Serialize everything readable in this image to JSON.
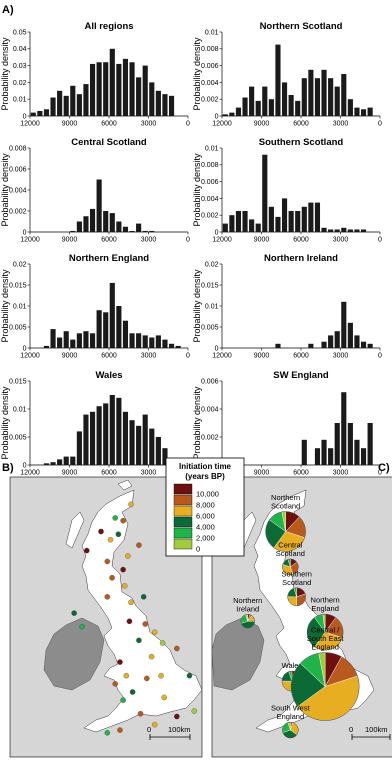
{
  "panels": {
    "a": "A)",
    "b": "B)",
    "c": "C)"
  },
  "chart_data": [
    {
      "type": "bar",
      "title": "All regions",
      "ylabel": "Probability density",
      "xlabel": "",
      "ylim": [
        0,
        0.05
      ],
      "yticks": [
        "0",
        "0.01",
        "0.02",
        "0.03",
        "0.04",
        "0.05"
      ],
      "xticks": [
        "12000",
        "9000",
        "6000",
        "3000",
        "0"
      ],
      "x": [
        11750,
        11250,
        10750,
        10250,
        9750,
        9250,
        8750,
        8250,
        7750,
        7250,
        6750,
        6250,
        5750,
        5250,
        4750,
        4250,
        3750,
        3250,
        2750,
        2250,
        1750,
        1250,
        750,
        250
      ],
      "values": [
        0.002,
        0.003,
        0.004,
        0.011,
        0.015,
        0.012,
        0.018,
        0.013,
        0.019,
        0.031,
        0.032,
        0.032,
        0.04,
        0.031,
        0.034,
        0.032,
        0.023,
        0.03,
        0.02,
        0.015,
        0.013,
        0.012,
        0.0,
        0.0
      ]
    },
    {
      "type": "bar",
      "title": "Northern Scotland",
      "ylabel": "Probability density",
      "xlabel": "",
      "ylim": [
        0,
        0.01
      ],
      "yticks": [
        "0",
        "0.002",
        "0.004",
        "0.006",
        "0.008",
        "0.01"
      ],
      "xticks": [
        "12000",
        "9000",
        "6000",
        "3000",
        "0"
      ],
      "x": [
        11750,
        11250,
        10750,
        10250,
        9750,
        9250,
        8750,
        8250,
        7750,
        7250,
        6750,
        6250,
        5750,
        5250,
        4750,
        4250,
        3750,
        3250,
        2750,
        2250,
        1750,
        1250,
        750,
        250
      ],
      "values": [
        0.0002,
        0.0004,
        0.001,
        0.0022,
        0.0035,
        0.0018,
        0.0035,
        0.002,
        0.0085,
        0.004,
        0.0025,
        0.0018,
        0.0045,
        0.0055,
        0.0045,
        0.0055,
        0.0045,
        0.0035,
        0.005,
        0.002,
        0.001,
        0.0008,
        0.001,
        0.0
      ]
    },
    {
      "type": "bar",
      "title": "Central Scotland",
      "ylabel": "Probability density",
      "xlabel": "",
      "ylim": [
        0,
        0.008
      ],
      "yticks": [
        "0",
        "0.002",
        "0.004",
        "0.006",
        "0.008"
      ],
      "xticks": [
        "12000",
        "9000",
        "6000",
        "3000",
        "0"
      ],
      "x": [
        11750,
        11250,
        10750,
        10250,
        9750,
        9250,
        8750,
        8250,
        7750,
        7250,
        6750,
        6250,
        5750,
        5250,
        4750,
        4250,
        3750,
        3250,
        2750,
        2250,
        1750,
        1250,
        750,
        250
      ],
      "values": [
        0.0,
        0.0,
        0.0,
        0.0,
        0.0,
        0.0,
        0.0001,
        0.001,
        0.0015,
        0.0022,
        0.005,
        0.002,
        0.0018,
        0.001,
        0.0005,
        0.0001,
        0.0008,
        0.0001,
        0.0001,
        0.0,
        0.0,
        0.0,
        0.0,
        0.0
      ]
    },
    {
      "type": "bar",
      "title": "Southern Scotland",
      "ylabel": "Probability density",
      "xlabel": "",
      "ylim": [
        0,
        0.01
      ],
      "yticks": [
        "0",
        "0.002",
        "0.004",
        "0.006",
        "0.008",
        "0.01"
      ],
      "xticks": [
        "12000",
        "9000",
        "6000",
        "3000",
        "0"
      ],
      "x": [
        11750,
        11250,
        10750,
        10250,
        9750,
        9250,
        8750,
        8250,
        7750,
        7250,
        6750,
        6250,
        5750,
        5250,
        4750,
        4250,
        3750,
        3250,
        2750,
        2250,
        1750,
        1250,
        750,
        250
      ],
      "values": [
        0.001,
        0.002,
        0.0025,
        0.0025,
        0.0015,
        0.001,
        0.0092,
        0.003,
        0.0018,
        0.004,
        0.0025,
        0.0025,
        0.003,
        0.0035,
        0.0035,
        0.0005,
        0.0003,
        0.0003,
        0.0005,
        0.0003,
        0.0003,
        0.0003,
        0.0,
        0.0
      ]
    },
    {
      "type": "bar",
      "title": "Northern England",
      "ylabel": "Probability density",
      "xlabel": "",
      "ylim": [
        0,
        0.02
      ],
      "yticks": [
        "0",
        "0.005",
        "0.01",
        "0.015",
        "0.02"
      ],
      "xticks": [
        "12000",
        "9000",
        "6000",
        "3000",
        "0"
      ],
      "x": [
        11750,
        11250,
        10750,
        10250,
        9750,
        9250,
        8750,
        8250,
        7750,
        7250,
        6750,
        6250,
        5750,
        5250,
        4750,
        4250,
        3750,
        3250,
        2750,
        2250,
        1750,
        1250,
        750,
        250
      ],
      "values": [
        0.0,
        0.0,
        0.0005,
        0.0045,
        0.0025,
        0.004,
        0.002,
        0.0035,
        0.004,
        0.0035,
        0.009,
        0.0085,
        0.0155,
        0.01,
        0.0065,
        0.0035,
        0.0035,
        0.003,
        0.0025,
        0.003,
        0.002,
        0.001,
        0.0005,
        0.0
      ]
    },
    {
      "type": "bar",
      "title": "Northern Ireland",
      "ylabel": "Probability density",
      "xlabel": "",
      "ylim": [
        0,
        0.02
      ],
      "yticks": [
        "0",
        "0.005",
        "0.01",
        "0.015",
        "0.02"
      ],
      "xticks": [
        "12000",
        "9000",
        "6000",
        "3000",
        "0"
      ],
      "x": [
        11750,
        11250,
        10750,
        10250,
        9750,
        9250,
        8750,
        8250,
        7750,
        7250,
        6750,
        6250,
        5750,
        5250,
        4750,
        4250,
        3750,
        3250,
        2750,
        2250,
        1750,
        1250,
        750,
        250
      ],
      "values": [
        0.0,
        0.0,
        0.0,
        0.0,
        0.0,
        0.0,
        0.0,
        0.0,
        0.001,
        0.0,
        0.0,
        0.0,
        0.0,
        0.001,
        0.0,
        0.0015,
        0.003,
        0.004,
        0.011,
        0.006,
        0.003,
        0.0015,
        0.001,
        0.0
      ]
    },
    {
      "type": "bar",
      "title": "Wales",
      "ylabel": "Probability density",
      "xlabel": "Cal years BP",
      "ylim": [
        0,
        0.015
      ],
      "yticks": [
        "0",
        "0.005",
        "0.01",
        "0.015"
      ],
      "xticks": [
        "12000",
        "9000",
        "6000",
        "3000",
        "0"
      ],
      "x": [
        11750,
        11250,
        10750,
        10250,
        9750,
        9250,
        8750,
        8250,
        7750,
        7250,
        6750,
        6250,
        5750,
        5250,
        4750,
        4250,
        3750,
        3250,
        2750,
        2250,
        1750,
        1250,
        750,
        250
      ],
      "values": [
        0.0,
        0.0,
        0.0003,
        0.0005,
        0.001,
        0.0015,
        0.0015,
        0.006,
        0.009,
        0.0095,
        0.0105,
        0.011,
        0.0125,
        0.012,
        0.0095,
        0.008,
        0.007,
        0.009,
        0.0065,
        0.005,
        0.003,
        0.001,
        0.0,
        0.0
      ]
    },
    {
      "type": "bar",
      "title": "SW England",
      "ylabel": "Probability density",
      "xlabel": "Cal years BP",
      "ylim": [
        0,
        0.006
      ],
      "yticks": [
        "0",
        "0.002",
        "0.004",
        "0.006"
      ],
      "xticks": [
        "12000",
        "9000",
        "6000",
        "3000",
        "0"
      ],
      "x": [
        11750,
        11250,
        10750,
        10250,
        9750,
        9250,
        8750,
        8250,
        7750,
        7250,
        6750,
        6250,
        5750,
        5250,
        4750,
        4250,
        3750,
        3250,
        2750,
        2250,
        1750,
        1250,
        750,
        250
      ],
      "values": [
        0.0,
        0.0,
        0.0,
        0.0,
        0.0,
        0.0,
        0.0,
        0.0,
        0.0,
        0.0,
        0.0,
        0.0,
        0.0018,
        0.0,
        0.0012,
        0.0018,
        0.0012,
        0.003,
        0.0052,
        0.003,
        0.0018,
        0.0012,
        0.003,
        0.0
      ]
    }
  ],
  "legend": {
    "title_line1": "Initiation time",
    "title_line2": "(years BP)",
    "items": [
      {
        "label": "10,000",
        "color": "#6e1010"
      },
      {
        "label": "8,000",
        "color": "#b85a1e"
      },
      {
        "label": "6,000",
        "color": "#e8ae22"
      },
      {
        "label": "4,000",
        "color": "#0c6b34"
      },
      {
        "label": "2,000",
        "color": "#1fb34a"
      },
      {
        "label": "0",
        "color": "#9ecc3c"
      }
    ]
  },
  "map_b": {
    "scale": {
      "zero": "0",
      "dist": "100km"
    },
    "sites": [
      {
        "lon": -3.1,
        "lat": 58.9,
        "c": 2
      },
      {
        "lon": -4.1,
        "lat": 58.4,
        "c": 4
      },
      {
        "lon": -3.6,
        "lat": 58.3,
        "c": 1
      },
      {
        "lon": -5.0,
        "lat": 57.9,
        "c": 0
      },
      {
        "lon": -3.9,
        "lat": 57.8,
        "c": 3
      },
      {
        "lon": -4.4,
        "lat": 57.6,
        "c": 2
      },
      {
        "lon": -2.6,
        "lat": 57.4,
        "c": 1
      },
      {
        "lon": -5.9,
        "lat": 57.2,
        "c": 0
      },
      {
        "lon": -3.3,
        "lat": 57.0,
        "c": 2
      },
      {
        "lon": -4.6,
        "lat": 56.8,
        "c": 1
      },
      {
        "lon": -3.6,
        "lat": 56.5,
        "c": 0
      },
      {
        "lon": -4.3,
        "lat": 56.2,
        "c": 1
      },
      {
        "lon": -3.5,
        "lat": 55.9,
        "c": 2
      },
      {
        "lon": -4.6,
        "lat": 55.5,
        "c": 1
      },
      {
        "lon": -3.1,
        "lat": 55.3,
        "c": 2
      },
      {
        "lon": -2.3,
        "lat": 55.5,
        "c": 3
      },
      {
        "lon": -6.7,
        "lat": 54.9,
        "c": 3
      },
      {
        "lon": -6.2,
        "lat": 54.4,
        "c": 4
      },
      {
        "lon": -3.2,
        "lat": 54.6,
        "c": 0
      },
      {
        "lon": -2.2,
        "lat": 54.5,
        "c": 1
      },
      {
        "lon": -1.6,
        "lat": 54.2,
        "c": 2
      },
      {
        "lon": -2.6,
        "lat": 53.9,
        "c": 3
      },
      {
        "lon": -1.1,
        "lat": 53.8,
        "c": 5
      },
      {
        "lon": -0.2,
        "lat": 53.6,
        "c": 1
      },
      {
        "lon": -1.8,
        "lat": 53.3,
        "c": 2
      },
      {
        "lon": -3.8,
        "lat": 53.1,
        "c": 0
      },
      {
        "lon": -3.4,
        "lat": 52.6,
        "c": 2
      },
      {
        "lon": -4.1,
        "lat": 52.3,
        "c": 1
      },
      {
        "lon": -3.0,
        "lat": 52.0,
        "c": 3
      },
      {
        "lon": -3.6,
        "lat": 51.7,
        "c": 4
      },
      {
        "lon": -2.1,
        "lat": 52.5,
        "c": 1
      },
      {
        "lon": -1.2,
        "lat": 52.6,
        "c": 2
      },
      {
        "lon": 0.6,
        "lat": 52.6,
        "c": 3
      },
      {
        "lon": -1.0,
        "lat": 51.8,
        "c": 2
      },
      {
        "lon": -2.5,
        "lat": 51.2,
        "c": 1
      },
      {
        "lon": 0.9,
        "lat": 51.3,
        "c": 5
      },
      {
        "lon": -3.8,
        "lat": 50.6,
        "c": 1
      },
      {
        "lon": -4.6,
        "lat": 50.5,
        "c": 4
      },
      {
        "lon": -1.6,
        "lat": 50.8,
        "c": 2
      },
      {
        "lon": -0.2,
        "lat": 51.1,
        "c": 0
      }
    ]
  },
  "map_c": {
    "scale": {
      "zero": "0",
      "dist": "100km"
    },
    "regions": [
      {
        "label_lines": [
          "Northern",
          "Scotland"
        ],
        "lon": -4.2,
        "lat": 57.9,
        "r": 20,
        "share": [
          12,
          18,
          30,
          25,
          12,
          3
        ]
      },
      {
        "label_lines": [
          "Central",
          "Scotland"
        ],
        "lon": -3.9,
        "lat": 56.6,
        "r": 8,
        "share": [
          15,
          30,
          35,
          15,
          5,
          0
        ]
      },
      {
        "label_lines": [
          "Southern",
          "Scotland"
        ],
        "lon": -3.5,
        "lat": 55.5,
        "r": 9,
        "share": [
          20,
          30,
          25,
          20,
          5,
          0
        ]
      },
      {
        "label_lines": [
          "Northern",
          "Ireland"
        ],
        "lon": -6.6,
        "lat": 54.6,
        "r": 7,
        "share": [
          5,
          5,
          15,
          45,
          25,
          5
        ]
      },
      {
        "label_lines": [
          "Northern",
          "England"
        ],
        "lon": -1.7,
        "lat": 54.2,
        "r": 18,
        "share": [
          10,
          20,
          30,
          30,
          8,
          2
        ]
      },
      {
        "label_lines": [
          "Wales"
        ],
        "lon": -3.8,
        "lat": 52.4,
        "r": 10,
        "share": [
          15,
          25,
          35,
          20,
          5,
          0
        ]
      },
      {
        "label_lines": [
          "Central /",
          "South East",
          "England"
        ],
        "lon": -1.7,
        "lat": 52.2,
        "r": 34,
        "share": [
          8,
          12,
          45,
          22,
          10,
          3
        ]
      },
      {
        "label_lines": [
          "South West",
          "England"
        ],
        "lon": -3.9,
        "lat": 50.6,
        "r": 8,
        "share": [
          0,
          5,
          30,
          35,
          25,
          5
        ]
      }
    ]
  }
}
